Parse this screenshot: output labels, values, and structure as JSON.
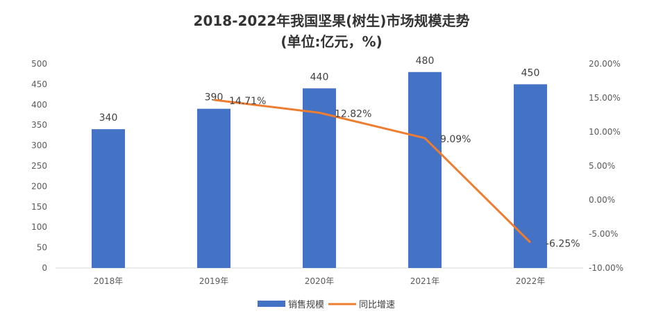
{
  "chart_data": {
    "type": "bar+line",
    "title": "2018-2022年我国坚果(树生)市场规模走势",
    "subtitle": "(单位:亿元，%)",
    "categories": [
      "2018年",
      "2019年",
      "2020年",
      "2021年",
      "2022年"
    ],
    "series": [
      {
        "name": "销售规模",
        "type": "bar",
        "axis": "left",
        "values": [
          340,
          390,
          440,
          480,
          450
        ],
        "labels": [
          "340",
          "390",
          "440",
          "480",
          "450"
        ],
        "color": "#4472C4"
      },
      {
        "name": "同比增速",
        "type": "line",
        "axis": "right",
        "values": [
          null,
          14.71,
          12.82,
          9.09,
          -6.25
        ],
        "labels": [
          "",
          "14.71%",
          "12.82%",
          "9.09%",
          "-6.25%"
        ],
        "color": "#ED7D31"
      }
    ],
    "ylim_left": [
      0,
      500
    ],
    "yticks_left": [
      "0",
      "50",
      "100",
      "150",
      "200",
      "250",
      "300",
      "350",
      "400",
      "450",
      "500"
    ],
    "ylim_right": [
      -10,
      20
    ],
    "yticks_right": [
      "-10.00%",
      "-5.00%",
      "0.00%",
      "5.00%",
      "10.00%",
      "15.00%",
      "20.00%"
    ],
    "grid": false,
    "legend": "bottom"
  }
}
